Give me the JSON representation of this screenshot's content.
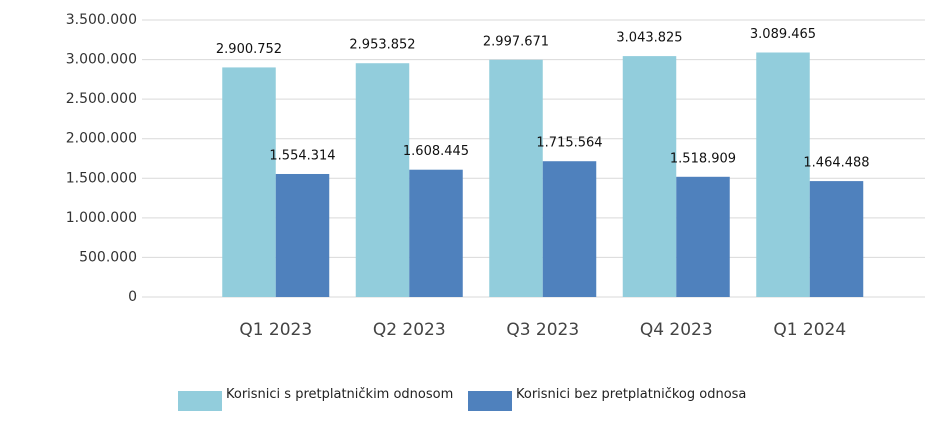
{
  "chart_data": {
    "type": "bar",
    "categories": [
      "Q1 2023",
      "Q2 2023",
      "Q3 2023",
      "Q4 2023",
      "Q1 2024"
    ],
    "series": [
      {
        "name": "Korisnici s pretplatničkim odnosom",
        "color": "#92cddc",
        "values": [
          2900752,
          2953852,
          2997671,
          3043825,
          3089465
        ],
        "value_labels": [
          "2.900.752",
          "2.953.852",
          "2.997.671",
          "3.043.825",
          "3.089.465"
        ]
      },
      {
        "name": "Korisnici bez pretplatničkog odnosa",
        "color": "#4f81bd",
        "values": [
          1554314,
          1608445,
          1715564,
          1518909,
          1464488
        ],
        "value_labels": [
          "1.554.314",
          "1.608.445",
          "1.715.564",
          "1.518.909",
          "1.464.488"
        ]
      }
    ],
    "ylim": [
      0,
      3500000
    ],
    "yticks": [
      0,
      {
        "value": 500000,
        "label": "500.000"
      },
      {
        "value": 1000000,
        "label": "1.000.000"
      },
      {
        "value": 1500000,
        "label": "1.500.000"
      },
      {
        "value": 2000000,
        "label": "2.000.000"
      },
      {
        "value": 2500000,
        "label": "2.500.000"
      },
      {
        "value": 3000000,
        "label": "3.000.000"
      },
      {
        "value": 3500000,
        "label": "3.500.000"
      }
    ],
    "grid": true,
    "legend": "bottom"
  }
}
